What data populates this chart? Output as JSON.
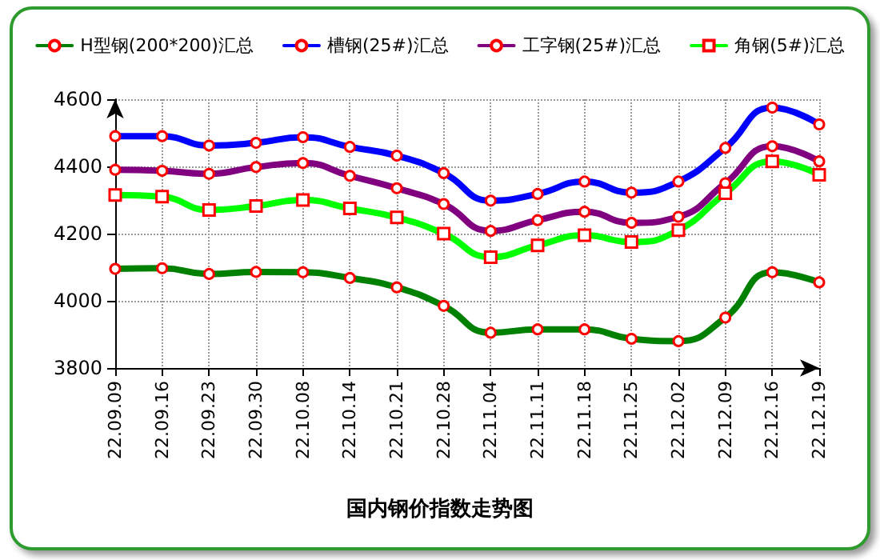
{
  "chart_data": {
    "type": "line",
    "title": "国内钢价指数走势图",
    "categories": [
      "22.09.09",
      "22.09.16",
      "22.09.23",
      "22.09.30",
      "22.10.08",
      "22.10.14",
      "22.10.21",
      "22.10.28",
      "22.11.04",
      "22.11.11",
      "22.11.18",
      "22.11.25",
      "22.12.02",
      "22.12.09",
      "22.12.16",
      "22.12.19"
    ],
    "series": [
      {
        "name": "H型钢(200*200)汇总",
        "color": "#008000",
        "values": [
          4095,
          4097,
          4080,
          4086,
          4085,
          4068,
          4040,
          3985,
          3905,
          3915,
          3915,
          3887,
          3880,
          3950,
          4085,
          4055
        ]
      },
      {
        "name": "槽钢(25#)汇总",
        "color": "#0000ff",
        "values": [
          4490,
          4490,
          4462,
          4470,
          4487,
          4458,
          4432,
          4380,
          4298,
          4318,
          4355,
          4322,
          4355,
          4455,
          4575,
          4525
        ]
      },
      {
        "name": "工字钢(25#)汇总",
        "color": "#800080",
        "values": [
          4390,
          4387,
          4378,
          4398,
          4410,
          4372,
          4335,
          4288,
          4208,
          4240,
          4265,
          4232,
          4250,
          4350,
          4460,
          4415
        ]
      },
      {
        "name": "角钢(5#)汇总",
        "color": "#00ff00",
        "marker": "square",
        "values": [
          4315,
          4310,
          4270,
          4282,
          4300,
          4275,
          4248,
          4200,
          4130,
          4165,
          4195,
          4175,
          4210,
          4320,
          4415,
          4375
        ]
      }
    ],
    "ylim": [
      3800,
      4600
    ],
    "yticks": [
      3800,
      4000,
      4200,
      4400,
      4600
    ],
    "grid": true,
    "legend": "top",
    "marker": "circle",
    "line_style": "solid"
  }
}
